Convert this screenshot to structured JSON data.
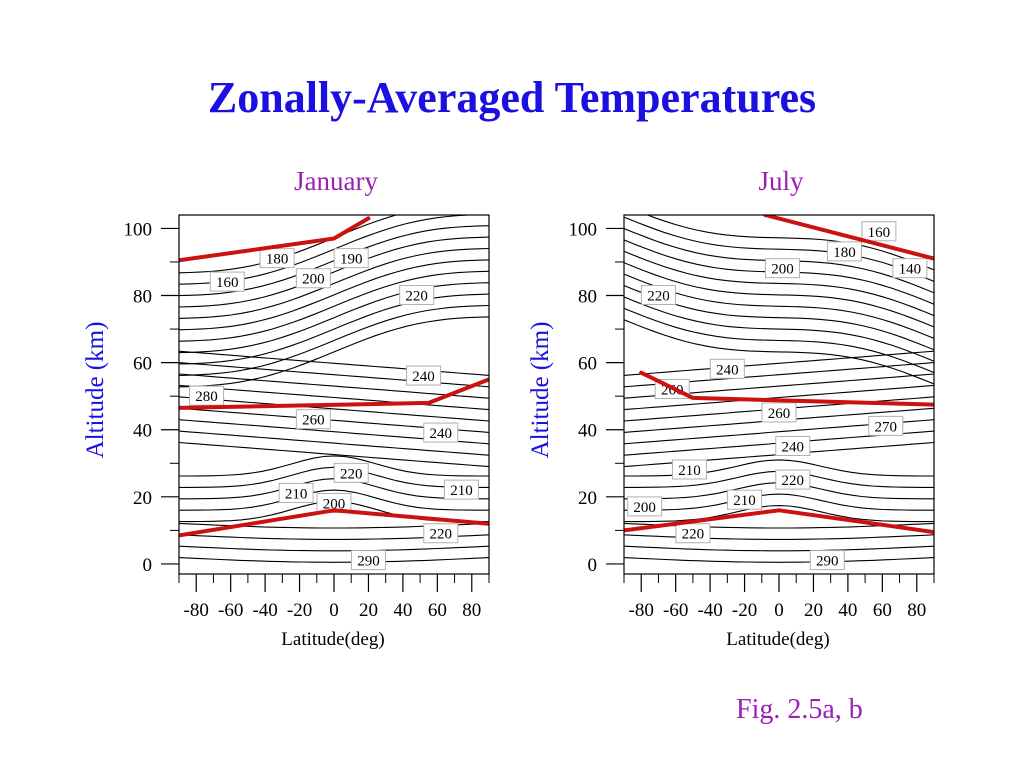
{
  "title": "Zonally-Averaged Temperatures",
  "caption": "Fig. 2.5a, b",
  "colors": {
    "title": "#1a10e0",
    "subtitle": "#9b1fb5",
    "ylabel": "#1a10e0",
    "tropo_strato_lines": "#cc1111",
    "contours": "#000000"
  },
  "chart_data": [
    {
      "type": "contour",
      "title": "January",
      "xlabel": "Latitude(deg)",
      "ylabel": "Altitude (km)",
      "xlim": [
        -90,
        90
      ],
      "ylim": [
        -3,
        104
      ],
      "x_ticks": [
        -80,
        -60,
        -40,
        -20,
        0,
        20,
        40,
        60,
        80
      ],
      "y_ticks": [
        0,
        20,
        40,
        60,
        80,
        100
      ],
      "grid": false,
      "units": "K",
      "contour_labels": [
        {
          "label": "180",
          "lat": -33,
          "alt": 91
        },
        {
          "label": "190",
          "lat": 10,
          "alt": 91
        },
        {
          "label": "160",
          "lat": -62,
          "alt": 84
        },
        {
          "label": "200",
          "lat": -12,
          "alt": 85
        },
        {
          "label": "220",
          "lat": 48,
          "alt": 80
        },
        {
          "label": "240",
          "lat": 52,
          "alt": 56
        },
        {
          "label": "280",
          "lat": -74,
          "alt": 50
        },
        {
          "label": "260",
          "lat": -12,
          "alt": 43
        },
        {
          "label": "240",
          "lat": 62,
          "alt": 39
        },
        {
          "label": "220",
          "lat": 10,
          "alt": 27
        },
        {
          "label": "210",
          "lat": -22,
          "alt": 21
        },
        {
          "label": "200",
          "lat": 0,
          "alt": 18
        },
        {
          "label": "210",
          "lat": 74,
          "alt": 22
        },
        {
          "label": "220",
          "lat": 62,
          "alt": 9
        },
        {
          "label": "290",
          "lat": 20,
          "alt": 1
        }
      ],
      "red_lines": [
        {
          "points": [
            [
              -90,
              90.5
            ],
            [
              0,
              97
            ],
            [
              20,
              103
            ]
          ]
        },
        {
          "points": [
            [
              -90,
              46.5
            ],
            [
              55,
              48
            ],
            [
              90,
              55
            ]
          ]
        },
        {
          "points": [
            [
              -90,
              8.5
            ],
            [
              0,
              16
            ],
            [
              90,
              12
            ]
          ]
        }
      ]
    },
    {
      "type": "contour",
      "title": "July",
      "xlabel": "Latitude(deg)",
      "ylabel": "Altitude (km)",
      "xlim": [
        -90,
        90
      ],
      "ylim": [
        -3,
        104
      ],
      "x_ticks": [
        -80,
        -60,
        -40,
        -20,
        0,
        20,
        40,
        60,
        80
      ],
      "y_ticks": [
        0,
        20,
        40,
        60,
        80,
        100
      ],
      "grid": false,
      "units": "K",
      "contour_labels": [
        {
          "label": "160",
          "lat": 58,
          "alt": 99
        },
        {
          "label": "180",
          "lat": 38,
          "alt": 93
        },
        {
          "label": "140",
          "lat": 76,
          "alt": 88
        },
        {
          "label": "200",
          "lat": 2,
          "alt": 88
        },
        {
          "label": "220",
          "lat": -70,
          "alt": 80
        },
        {
          "label": "240",
          "lat": -30,
          "alt": 58
        },
        {
          "label": "260",
          "lat": -62,
          "alt": 52
        },
        {
          "label": "260",
          "lat": 0,
          "alt": 45
        },
        {
          "label": "270",
          "lat": 62,
          "alt": 41
        },
        {
          "label": "240",
          "lat": 8,
          "alt": 35
        },
        {
          "label": "210",
          "lat": -52,
          "alt": 28
        },
        {
          "label": "220",
          "lat": 8,
          "alt": 25
        },
        {
          "label": "200",
          "lat": -78,
          "alt": 17
        },
        {
          "label": "210",
          "lat": -20,
          "alt": 19
        },
        {
          "label": "220",
          "lat": -50,
          "alt": 9
        },
        {
          "label": "290",
          "lat": 28,
          "alt": 1
        }
      ],
      "red_lines": [
        {
          "points": [
            [
              -8,
              104
            ],
            [
              90,
              91
            ]
          ]
        },
        {
          "points": [
            [
              -80,
              57
            ],
            [
              -50,
              49.5
            ],
            [
              90,
              47.5
            ]
          ]
        },
        {
          "points": [
            [
              -90,
              10
            ],
            [
              0,
              16
            ],
            [
              90,
              9.5
            ]
          ]
        }
      ]
    }
  ]
}
